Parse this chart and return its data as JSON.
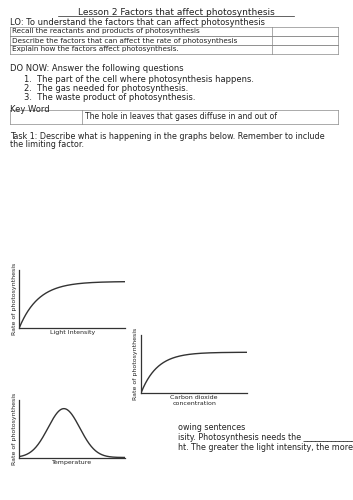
{
  "title": "Lesson 2 Factors that affect photosynthesis",
  "lo": "LO: To understand the factors that can affect photosynthesis",
  "table_rows": [
    "Recall the reactants and products of photosynthesis",
    "Describe the factors that can affect the rate of photosynthesis",
    "Explain how the factors affect photosynthesis."
  ],
  "do_now_header": "DO NOW: Answer the following questions",
  "do_now_items": [
    "The part of the cell where photosynthesis happens.",
    "The gas needed for photosynthesis.",
    "The waste product of photosynthesis."
  ],
  "key_word_label": "Key Word",
  "key_word_def": "The hole in leaves that gases diffuse in and out of",
  "task1_line1": "Task 1: Describe what is happening in the graphs below. Remember to include",
  "task1_line2": "the limiting factor.",
  "graph1_xlabel": "Light Intensity",
  "graph1_ylabel": "Rate of photosynthesis",
  "graph2_xlabel": "Carbon dioxide\nconcentration",
  "graph2_ylabel": "Rate of photosynthesis",
  "graph3_xlabel": "Temperature",
  "graph3_ylabel": "Rate of photosynthesis",
  "partial_text1": "owing sentences",
  "partial_text2": "isity. Photosynthesis needs the _____________________",
  "partial_text3": "ht. The greater the light intensity, the more energy",
  "bg_color": "#ffffff",
  "text_color": "#222222",
  "line_color": "#333333",
  "border_color": "#888888"
}
